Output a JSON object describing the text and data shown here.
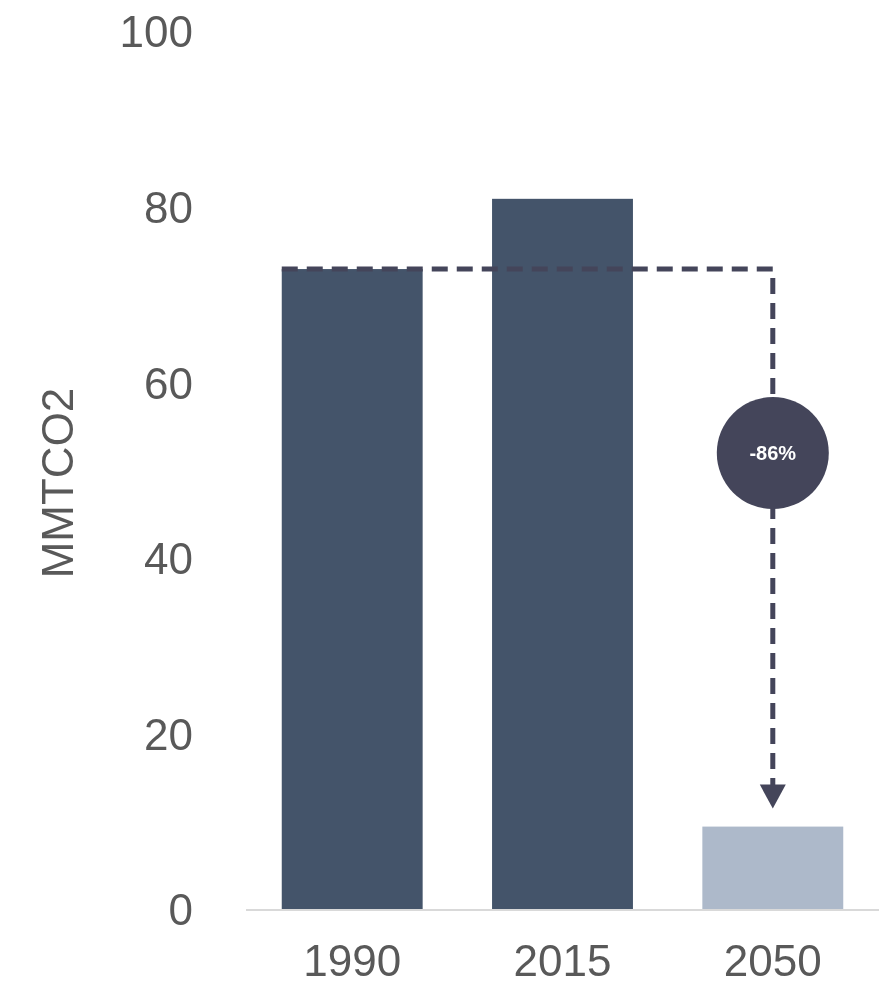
{
  "chart_data": {
    "type": "bar",
    "ylabel": "MMTCO2",
    "categories": [
      "1990",
      "2015",
      "2050"
    ],
    "values": [
      73,
      81,
      9.5
    ],
    "colors": [
      "#44546a",
      "#44546a",
      "#adb9ca"
    ],
    "ylim": [
      0,
      100
    ],
    "yticks": [
      0,
      20,
      40,
      60,
      80,
      100
    ],
    "grid": false,
    "annotations": [
      "-86%"
    ]
  }
}
